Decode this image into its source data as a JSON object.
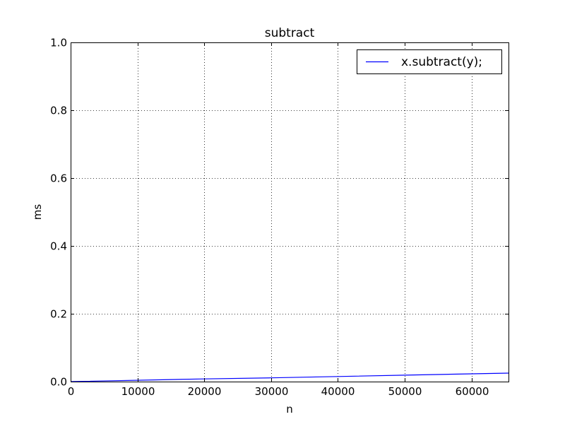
{
  "chart_data": {
    "type": "line",
    "title": "subtract",
    "xlabel": "n",
    "ylabel": "ms",
    "xlim": [
      0,
      65536
    ],
    "ylim": [
      0,
      1.0
    ],
    "xticks": [
      0,
      10000,
      20000,
      30000,
      40000,
      50000,
      60000
    ],
    "xtick_labels": [
      "0",
      "10000",
      "20000",
      "30000",
      "40000",
      "50000",
      "60000"
    ],
    "yticks": [
      0,
      0.2,
      0.4,
      0.6,
      0.8,
      1.0
    ],
    "ytick_labels": [
      "0.0",
      "0.2",
      "0.4",
      "0.6",
      "0.8",
      "1.0"
    ],
    "grid": true,
    "legend_position": "top-right",
    "series": [
      {
        "name": "x.subtract(y);",
        "color": "#0000ff",
        "x": [
          0,
          10000,
          20000,
          30000,
          40000,
          50000,
          60000,
          65536
        ],
        "y": [
          0.0,
          0.004,
          0.008,
          0.011,
          0.015,
          0.019,
          0.023,
          0.025
        ]
      }
    ]
  }
}
